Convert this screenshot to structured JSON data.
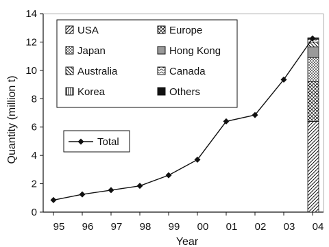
{
  "chart_data": {
    "type": "line",
    "xlabel": "Year",
    "ylabel": "Quantity (million t)",
    "categories": [
      "95",
      "96",
      "97",
      "98",
      "99",
      "00",
      "01",
      "02",
      "03",
      "04"
    ],
    "ylim": [
      0,
      14
    ],
    "yticks": [
      "0",
      "2",
      "4",
      "6",
      "8",
      "10",
      "12",
      "14"
    ],
    "grid": false,
    "series": [
      {
        "name": "Total",
        "type": "line",
        "values": [
          0.85,
          1.25,
          1.55,
          1.85,
          2.6,
          3.7,
          6.4,
          6.85,
          9.35,
          12.25
        ]
      }
    ],
    "stacked_bar": {
      "category": "04",
      "segments": [
        {
          "name": "USA",
          "value": 6.4,
          "pattern": "diagonal"
        },
        {
          "name": "Europe",
          "value": 2.8,
          "pattern": "crosshatch"
        },
        {
          "name": "Japan",
          "value": 1.7,
          "pattern": "dots"
        },
        {
          "name": "Hong Kong",
          "value": 0.75,
          "pattern": "gray"
        },
        {
          "name": "Australia",
          "value": 0.35,
          "pattern": "backdiagonal"
        },
        {
          "name": "Canada",
          "value": 0.2,
          "pattern": "wave"
        },
        {
          "name": "Korea",
          "value": 0.05,
          "pattern": "vertical"
        },
        {
          "name": "Others",
          "value": 0.05,
          "pattern": "solid"
        }
      ]
    },
    "legend_placement": "top-left"
  },
  "legend": {
    "bar_entries": [
      {
        "label": "USA",
        "pattern": "diagonal"
      },
      {
        "label": "Europe",
        "pattern": "crosshatch"
      },
      {
        "label": "Japan",
        "pattern": "dots"
      },
      {
        "label": "Hong Kong",
        "pattern": "gray"
      },
      {
        "label": "Australia",
        "pattern": "backdiagonal"
      },
      {
        "label": "Canada",
        "pattern": "wave"
      },
      {
        "label": "Korea",
        "pattern": "vertical"
      },
      {
        "label": "Others",
        "pattern": "solid"
      }
    ],
    "line_entry": {
      "label": "Total"
    }
  },
  "colors": {
    "line": "#111111",
    "axis": "#111111",
    "gray_fill": "#9a9a9a"
  }
}
